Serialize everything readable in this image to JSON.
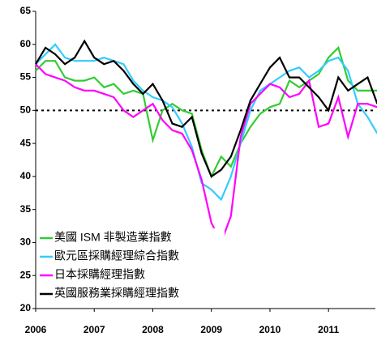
{
  "chart_data": {
    "type": "line",
    "x": [
      2006.0,
      2006.167,
      2006.333,
      2006.5,
      2006.667,
      2006.833,
      2007.0,
      2007.167,
      2007.333,
      2007.5,
      2007.667,
      2007.833,
      2008.0,
      2008.167,
      2008.333,
      2008.5,
      2008.667,
      2008.833,
      2009.0,
      2009.167,
      2009.333,
      2009.5,
      2009.667,
      2009.833,
      2010.0,
      2010.167,
      2010.333,
      2010.5,
      2010.667,
      2010.833,
      2011.0,
      2011.167,
      2011.333,
      2011.5,
      2011.667,
      2011.833
    ],
    "series": [
      {
        "name": "美國 ISM 非製造業指數",
        "color": "#33cc33",
        "values": [
          56,
          57.5,
          57.5,
          55,
          54.5,
          54.5,
          55,
          53.5,
          54,
          52.5,
          53,
          52.5,
          45.5,
          50,
          51,
          50,
          49.5,
          44,
          40,
          43,
          41.5,
          45,
          47.5,
          49.5,
          50.5,
          51,
          54.5,
          53.5,
          54.5,
          55.5,
          58,
          59.5,
          54.5,
          53,
          53,
          53
        ]
      },
      {
        "name": "歐元區採購經理綜合指數",
        "color": "#33ccff",
        "values": [
          57,
          58.5,
          60,
          58,
          57.5,
          57.5,
          57.5,
          58,
          57.5,
          57,
          54.5,
          53,
          52,
          51.5,
          50.5,
          48,
          44.5,
          39,
          38,
          36.5,
          40,
          45,
          50,
          53,
          54,
          55,
          56,
          56.5,
          55,
          56,
          57.5,
          58,
          56,
          51,
          49,
          46.5
        ]
      },
      {
        "name": "日本採購經理指數",
        "color": "#ff00ff",
        "values": [
          57,
          55.5,
          55,
          54.5,
          53.5,
          53,
          53,
          52.5,
          52,
          50,
          49,
          50,
          51,
          48.5,
          47,
          46.5,
          44,
          39.5,
          33,
          30,
          34,
          46,
          51,
          52.5,
          54,
          53.5,
          52,
          52.5,
          54.5,
          47.5,
          48,
          52,
          46,
          51,
          51,
          50.5
        ]
      },
      {
        "name": "英國服務業採購經理指數",
        "color": "#000000",
        "values": [
          57,
          59.5,
          58.5,
          57,
          58,
          60.5,
          58,
          57,
          57.5,
          56,
          54,
          52.5,
          54,
          51.5,
          48,
          47.5,
          49,
          43.5,
          40,
          41,
          43,
          47,
          51.5,
          54,
          56.5,
          58,
          55,
          55,
          53.5,
          52,
          50,
          55,
          53,
          54,
          55,
          51
        ]
      }
    ],
    "xlim": [
      2006,
      2011.8
    ],
    "xticks": [
      2006,
      2007,
      2008,
      2009,
      2010,
      2011
    ],
    "ylim": [
      20,
      65
    ],
    "yticks": [
      20,
      25,
      30,
      35,
      40,
      45,
      50,
      55,
      60,
      65
    ],
    "reference_line": 50,
    "legend": "lower left",
    "grid": false
  }
}
